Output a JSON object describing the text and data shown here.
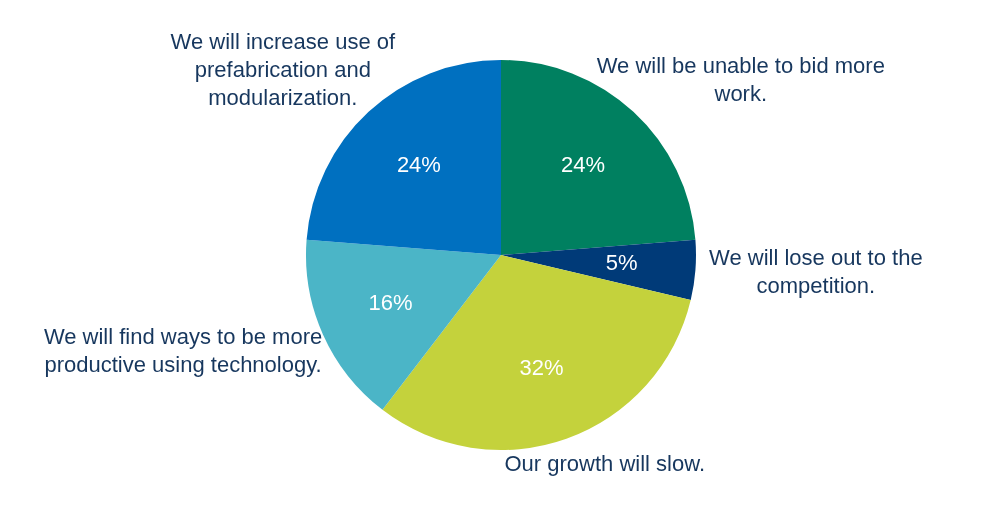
{
  "chart_data": {
    "type": "pie",
    "categories": [
      "We will be unable to bid more work.",
      "We will lose out to the competition.",
      "Our growth will slow.",
      "We will find ways to be more productive using technology.",
      "We will increase use of prefabrication and modularization."
    ],
    "values": [
      24,
      5,
      32,
      16,
      24
    ],
    "value_labels": [
      "24%",
      "5%",
      "32%",
      "16%",
      "24%"
    ],
    "colors": [
      "#008060",
      "#003a78",
      "#c4d23c",
      "#4bb5c7",
      "#0070c0"
    ],
    "legend": false
  }
}
